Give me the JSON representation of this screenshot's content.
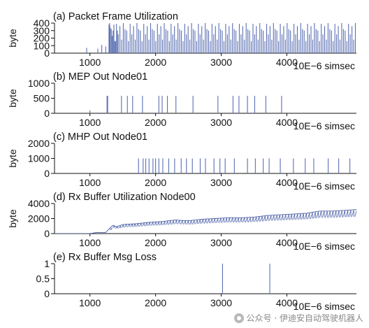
{
  "chart_data": [
    {
      "type": "bar",
      "title": "(a) Packet Frame Utilization",
      "ylabel": "byte",
      "xlabel": "10E−6 simsec",
      "xlim": [
        460,
        5060
      ],
      "ylim": [
        0,
        400
      ],
      "yticks": [
        0,
        100,
        200,
        300,
        400
      ],
      "xticks": [
        1000,
        2000,
        3000,
        4000
      ],
      "color": "#5a6fb3",
      "pattern": {
        "kind": "dense-spikes",
        "start": 1300,
        "end": 5060,
        "spacing": 26,
        "levels": [
          400,
          320,
          300,
          160,
          390,
          250,
          360,
          180
        ]
      },
      "x": [
        950,
        1120,
        1180,
        1240,
        1290,
        1310,
        1340,
        1365,
        1390,
        1420
      ],
      "values": [
        70,
        60,
        110,
        90,
        380,
        340,
        230,
        380,
        160,
        300
      ]
    },
    {
      "type": "bar",
      "title": "(b) MEP Out Node01",
      "ylabel": "byte",
      "xlabel": "10E−6 simsec",
      "xlim": [
        460,
        5060
      ],
      "ylim": [
        0,
        1000
      ],
      "yticks": [
        0,
        500,
        1000
      ],
      "xticks": [
        1000,
        2000,
        3000,
        4000
      ],
      "color": "#5a6fb3",
      "x": [
        1000,
        1260,
        1270,
        1480,
        1570,
        1650,
        1800,
        2050,
        2100,
        2180,
        2310,
        2570,
        2950,
        3180,
        3270,
        3400,
        3510,
        3680,
        3920
      ],
      "values": [
        100,
        580,
        580,
        580,
        580,
        580,
        580,
        580,
        580,
        580,
        580,
        580,
        580,
        580,
        580,
        580,
        580,
        580,
        580
      ]
    },
    {
      "type": "bar",
      "title": "(c) MHP Out Node01",
      "ylabel": "byte",
      "xlabel": "10E−6 simsec",
      "xlim": [
        460,
        5060
      ],
      "ylim": [
        0,
        2000
      ],
      "yticks": [
        0,
        1000,
        2000
      ],
      "xticks": [
        1000,
        2000,
        3000,
        4000
      ],
      "color": "#5a6fb3",
      "x": [
        1740,
        1810,
        1850,
        1900,
        1960,
        2000,
        2050,
        2110,
        2200,
        2290,
        2390,
        2470,
        2560,
        2680,
        2760,
        2890,
        2980,
        3060,
        3200,
        3400,
        3520,
        3640,
        3730,
        3900,
        4100,
        4280,
        4410,
        4630,
        4790,
        4960
      ],
      "values": [
        1000,
        1000,
        1000,
        1000,
        1000,
        1000,
        1000,
        1000,
        1000,
        1000,
        1000,
        1000,
        1000,
        1000,
        1000,
        1000,
        1000,
        1000,
        1000,
        1000,
        1000,
        1000,
        1000,
        1000,
        1000,
        1000,
        1000,
        1000,
        1000,
        1000
      ]
    },
    {
      "type": "line",
      "title": "(d) Rx Buffer Utilization Node00",
      "ylabel": "byte",
      "xlabel": "10E−6 simsec",
      "xlim": [
        460,
        5060
      ],
      "ylim": [
        0,
        4000
      ],
      "yticks": [
        0,
        2000,
        4000
      ],
      "xticks": [
        1000,
        2000,
        3000,
        4000
      ],
      "color": "#4a5fa8",
      "x": [
        460,
        1000,
        1100,
        1240,
        1300,
        1350,
        1400,
        1500,
        1700,
        1900,
        2100,
        2300,
        2500,
        2700,
        2900,
        3100,
        3300,
        3500,
        3700,
        3900,
        4100,
        4300,
        4500,
        4700,
        4900,
        5060
      ],
      "values": [
        0,
        0,
        150,
        150,
        700,
        1100,
        900,
        1200,
        1300,
        1500,
        1600,
        1800,
        1700,
        1900,
        2000,
        2100,
        2100,
        2200,
        2400,
        2500,
        2600,
        2700,
        3000,
        3000,
        3100,
        3200
      ]
    },
    {
      "type": "bar",
      "title": "(e) Rx Buffer Msg Loss",
      "ylabel": "",
      "xlabel": "10E−6 simsec",
      "xlim": [
        460,
        5060
      ],
      "ylim": [
        0,
        1
      ],
      "yticks": [
        0,
        0.5,
        1
      ],
      "xticks": [
        1000,
        2000,
        3000,
        4000
      ],
      "color": "#5a6fb3",
      "x": [
        3020,
        3740
      ],
      "values": [
        1,
        1
      ]
    }
  ],
  "watermark": {
    "text": "公众号 · 伊迪安自动驾驶机器人",
    "icon": "wechat-icon"
  }
}
